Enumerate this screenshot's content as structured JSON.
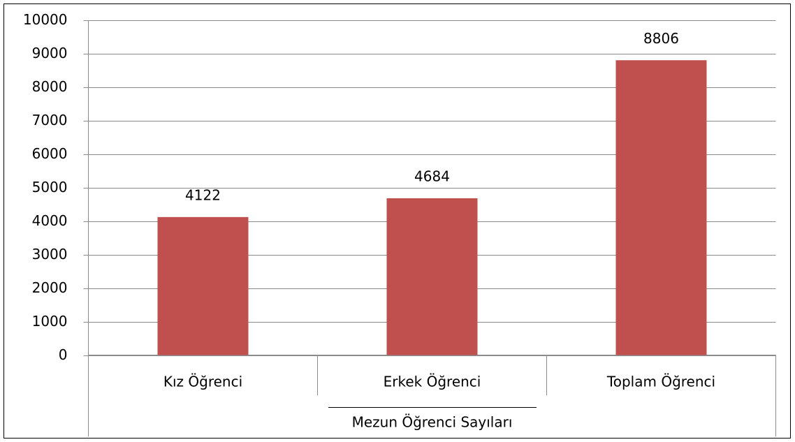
{
  "chart_data": {
    "type": "bar",
    "categories": [
      "Kız Öğrenci",
      "Erkek Öğrenci",
      "Toplam Öğrenci"
    ],
    "category_group": "Mezun Öğrenci Sayıları",
    "values": [
      4122,
      4684,
      8806
    ],
    "color": "#c0504d",
    "ylim": [
      0,
      10000
    ],
    "yticks": [
      0,
      1000,
      2000,
      3000,
      4000,
      5000,
      6000,
      7000,
      8000,
      9000,
      10000
    ],
    "grid": true,
    "data_labels": true
  }
}
